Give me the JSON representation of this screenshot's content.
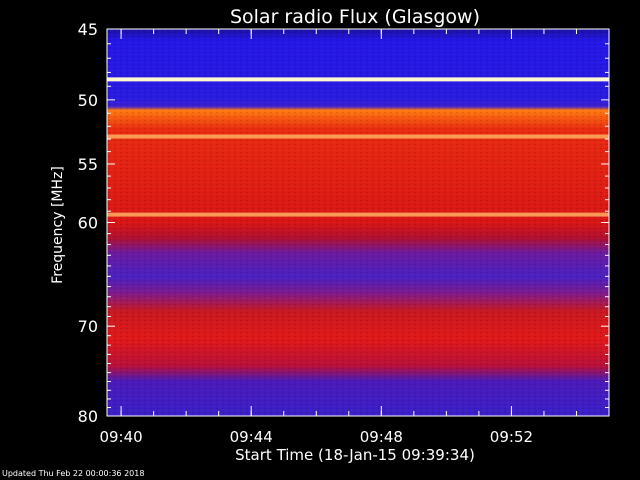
{
  "chart_data": {
    "type": "heatmap",
    "title": "Solar radio Flux (Glasgow)",
    "xlabel": "Start Time (18-Jan-15 09:39:34)",
    "ylabel": "Frequency [MHz]",
    "x_ticks": [
      "09:40",
      "09:44",
      "09:48",
      "09:52"
    ],
    "y_ticks": [
      45,
      50,
      55,
      60,
      70,
      80
    ],
    "y_scale": "log",
    "ylim": [
      80,
      45
    ],
    "xlim": [
      "09:39:34",
      "09:55:00"
    ],
    "colormap": "blue-red-yellow-white",
    "bright_lines_mhz": [
      48.5,
      52.8,
      59.3
    ],
    "bands": [
      {
        "from_mhz": 45,
        "to_mhz": 52.6,
        "level": "low"
      },
      {
        "from_mhz": 52.6,
        "to_mhz": 63.5,
        "level": "high"
      },
      {
        "from_mhz": 63.5,
        "to_mhz": 71.5,
        "level": "low-medium"
      },
      {
        "from_mhz": 71.5,
        "to_mhz": 77,
        "level": "medium-high"
      },
      {
        "from_mhz": 77,
        "to_mhz": 80,
        "level": "low"
      }
    ]
  },
  "footer": "Updated Thu Feb 22 00:00:36 2018",
  "colors": {
    "background": "#000000",
    "axis": "#ffffff",
    "low": "#2a1be0",
    "medium": "#7a20b0",
    "high": "#e01818",
    "line": "#fff0a0"
  }
}
